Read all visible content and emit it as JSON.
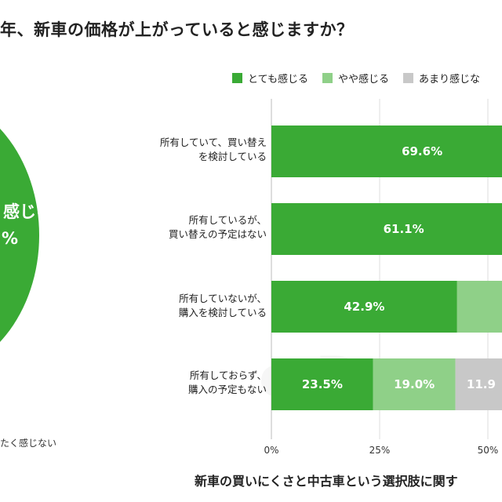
{
  "title": "年、新車の価格が上がっていると感じますか？",
  "pie": {
    "label_line1": "感じる",
    "label_line2": "%",
    "footer": "たく感じない",
    "color": "#3aaa35"
  },
  "watermark": "e Research",
  "subtitle": "新車の買いにくさと中古車という選択肢に関す",
  "chart_data": {
    "type": "bar",
    "orientation": "horizontal",
    "stacked": true,
    "categories": [
      [
        "所有していて、買い替え",
        "を検討している"
      ],
      [
        "所有しているが、",
        "買い替えの予定はない"
      ],
      [
        "所有していないが、",
        "購入を検討している"
      ],
      [
        "所有しておらず、",
        "購入の予定もない"
      ]
    ],
    "series": [
      {
        "name": "とても感じる",
        "color": "#3aaa35",
        "values": [
          69.6,
          61.1,
          42.9,
          23.5
        ],
        "labels": [
          "69.6%",
          "61.1%",
          "42.9%",
          "23.5%"
        ]
      },
      {
        "name": "やや感じる",
        "color": "#8fd088",
        "values": [
          null,
          null,
          null,
          19.0
        ],
        "labels": [
          "",
          "",
          "",
          "19.0%"
        ]
      },
      {
        "name": "あまり感じな",
        "color": "#c8c8c8",
        "values": [
          null,
          null,
          null,
          11.9
        ],
        "labels": [
          "",
          "",
          "",
          "11.9"
        ]
      }
    ],
    "xticks": [
      "0%",
      "25%",
      "50%"
    ],
    "xlim": [
      0,
      100
    ],
    "grid": true,
    "legend_position": "top"
  }
}
